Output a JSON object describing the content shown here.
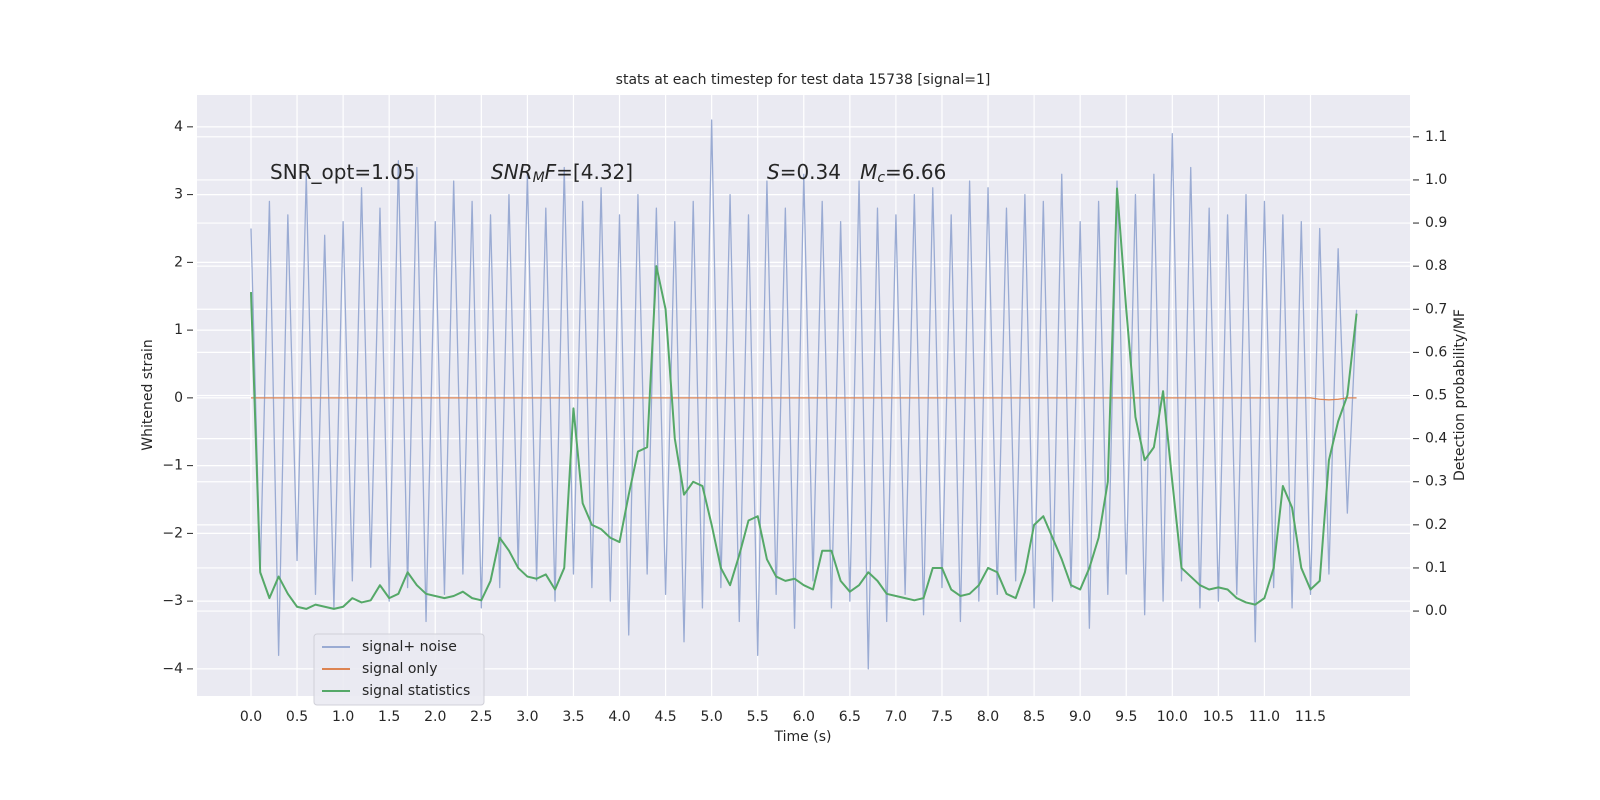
{
  "chart_data": {
    "type": "line",
    "title": "stats at each timestep for test data 15738 [signal=1]",
    "xlabel": "Time (s)",
    "ylabel": "Whitened strain",
    "y2label": "Detection probability/MF",
    "annotations": [
      [
        {
          "text": "SNR_opt=1.05",
          "style": "normal"
        }
      ],
      [
        {
          "text": "SNR",
          "style": "italic"
        },
        {
          "text": "M",
          "style": "sub"
        },
        {
          "text": "F",
          "style": "italic"
        },
        {
          "text": "=[4.32]",
          "style": "normal"
        }
      ],
      [
        {
          "text": "S",
          "style": "italic"
        },
        {
          "text": "=0.34   ",
          "style": "normal"
        },
        {
          "text": "M",
          "style": "italic"
        },
        {
          "text": "c",
          "style": "sub"
        },
        {
          "text": "=6.66",
          "style": "normal"
        }
      ]
    ],
    "grid": true,
    "legend": "lower left",
    "x": [
      0,
      0.1,
      0.2,
      0.3,
      0.4,
      0.5,
      0.6,
      0.7,
      0.8,
      0.9,
      1,
      1.1,
      1.2,
      1.3,
      1.4,
      1.5,
      1.6,
      1.7,
      1.8,
      1.9,
      2,
      2.1,
      2.2,
      2.3,
      2.4,
      2.5,
      2.6,
      2.7,
      2.8,
      2.9,
      3,
      3.1,
      3.2,
      3.3,
      3.4,
      3.5,
      3.6,
      3.7,
      3.8,
      3.9,
      4,
      4.1,
      4.2,
      4.3,
      4.4,
      4.5,
      4.6,
      4.7,
      4.8,
      4.9,
      5,
      5.1,
      5.2,
      5.3,
      5.4,
      5.5,
      5.6,
      5.7,
      5.8,
      5.9,
      6,
      6.1,
      6.2,
      6.3,
      6.4,
      6.5,
      6.6,
      6.7,
      6.8,
      6.9,
      7,
      7.1,
      7.2,
      7.3,
      7.4,
      7.5,
      7.6,
      7.7,
      7.8,
      7.9,
      8,
      8.1,
      8.2,
      8.3,
      8.4,
      8.5,
      8.6,
      8.7,
      8.8,
      8.9,
      9,
      9.1,
      9.2,
      9.3,
      9.4,
      9.5,
      9.6,
      9.7,
      9.8,
      9.9,
      10,
      10.1,
      10.2,
      10.3,
      10.4,
      10.5,
      10.6,
      10.7,
      10.8,
      10.9,
      11,
      11.1,
      11.2,
      11.3,
      11.4,
      11.5,
      11.6,
      11.7,
      11.8,
      11.9,
      12
    ],
    "series": [
      {
        "name": "signal+ noise",
        "color": "#9aabd3",
        "values": [
          2.5,
          -2.6,
          2.9,
          -3.8,
          2.7,
          -2.4,
          3.3,
          -2.9,
          2.4,
          -3.1,
          2.6,
          -2.7,
          3.1,
          -2.5,
          2.8,
          -3.0,
          3.5,
          -2.8,
          3.4,
          -3.3,
          2.6,
          -2.9,
          3.2,
          -2.6,
          2.9,
          -3.1,
          2.7,
          -2.8,
          3.0,
          -2.5,
          3.3,
          -2.7,
          2.8,
          -3.0,
          3.4,
          -2.6,
          2.9,
          -2.8,
          3.1,
          -3.0,
          2.7,
          -3.5,
          3.0,
          -2.6,
          2.8,
          -2.9,
          2.6,
          -3.6,
          2.9,
          -3.1,
          4.1,
          -2.8,
          3.0,
          -3.3,
          2.7,
          -3.8,
          3.2,
          -2.9,
          2.8,
          -3.4,
          3.3,
          -2.7,
          2.9,
          -3.1,
          2.6,
          -3.0,
          3.2,
          -4.0,
          2.8,
          -3.3,
          2.7,
          -2.9,
          3.0,
          -3.2,
          3.1,
          -2.8,
          2.7,
          -3.3,
          3.2,
          -3.0,
          3.1,
          -2.9,
          2.8,
          -2.7,
          3.0,
          -3.1,
          2.9,
          -3.0,
          3.3,
          -2.8,
          2.6,
          -3.4,
          2.9,
          -2.9,
          3.2,
          -2.6,
          3.0,
          -3.2,
          3.3,
          -3.0,
          3.9,
          -2.7,
          3.4,
          -3.1,
          2.8,
          -3.0,
          2.7,
          -2.9,
          3.0,
          -3.6,
          2.9,
          -2.8,
          2.7,
          -3.1,
          2.6,
          -2.9,
          2.5,
          -2.6,
          2.2,
          -1.7,
          1.3
        ]
      },
      {
        "name": "signal only",
        "color": "#dd8452",
        "values": [
          0,
          0,
          0,
          0,
          0,
          0,
          0,
          0,
          0,
          0,
          0,
          0,
          0,
          0,
          0,
          0,
          0,
          0,
          0,
          0,
          0,
          0,
          0,
          0,
          0,
          0,
          0,
          0,
          0,
          0,
          0,
          0,
          0,
          0,
          0,
          0,
          0,
          0,
          0,
          0,
          0,
          0,
          0,
          0,
          0,
          0,
          0,
          0,
          0,
          0,
          0,
          0,
          0,
          0,
          0,
          0,
          0,
          0,
          0,
          0,
          0,
          0,
          0,
          0,
          0,
          0,
          0,
          0,
          0,
          0,
          0,
          0,
          0,
          0,
          0,
          0,
          0,
          0,
          0,
          0,
          0,
          0,
          0,
          0,
          0,
          0,
          0,
          0,
          0,
          0,
          0,
          0,
          0,
          0,
          0,
          0,
          0,
          0,
          0,
          0,
          0,
          0,
          0,
          0,
          0,
          0,
          0,
          0,
          0,
          0,
          0,
          0,
          0,
          0,
          0,
          0,
          -0.02,
          -0.03,
          -0.02,
          0,
          0
        ]
      },
      {
        "name": "signal statistics",
        "color": "#55a868",
        "axis": "y2",
        "values": [
          0.74,
          0.09,
          0.03,
          0.08,
          0.04,
          0.01,
          0.005,
          0.015,
          0.01,
          0.005,
          0.01,
          0.03,
          0.02,
          0.025,
          0.06,
          0.03,
          0.04,
          0.09,
          0.06,
          0.04,
          0.035,
          0.03,
          0.035,
          0.045,
          0.03,
          0.025,
          0.07,
          0.17,
          0.14,
          0.1,
          0.08,
          0.075,
          0.085,
          0.05,
          0.1,
          0.47,
          0.25,
          0.2,
          0.19,
          0.17,
          0.16,
          0.27,
          0.37,
          0.38,
          0.8,
          0.7,
          0.4,
          0.27,
          0.3,
          0.29,
          0.2,
          0.1,
          0.06,
          0.13,
          0.21,
          0.22,
          0.12,
          0.08,
          0.07,
          0.075,
          0.06,
          0.05,
          0.14,
          0.14,
          0.07,
          0.045,
          0.06,
          0.09,
          0.07,
          0.04,
          0.035,
          0.03,
          0.025,
          0.03,
          0.1,
          0.1,
          0.05,
          0.035,
          0.04,
          0.06,
          0.1,
          0.09,
          0.04,
          0.03,
          0.09,
          0.2,
          0.22,
          0.17,
          0.12,
          0.06,
          0.05,
          0.1,
          0.17,
          0.3,
          0.98,
          0.7,
          0.45,
          0.35,
          0.38,
          0.51,
          0.3,
          0.1,
          0.08,
          0.06,
          0.05,
          0.055,
          0.05,
          0.03,
          0.02,
          0.015,
          0.03,
          0.1,
          0.29,
          0.24,
          0.1,
          0.05,
          0.07,
          0.35,
          0.44,
          0.5,
          0.69
        ]
      }
    ],
    "xlim": [
      -0.586,
      12.58
    ],
    "xticks": [
      {
        "value": 0,
        "label": "0.0"
      },
      {
        "value": 0.5,
        "label": "0.5"
      },
      {
        "value": 1,
        "label": "1.0"
      },
      {
        "value": 1.5,
        "label": "1.5"
      },
      {
        "value": 2,
        "label": "2.0"
      },
      {
        "value": 2.5,
        "label": "2.5"
      },
      {
        "value": 3,
        "label": "3.0"
      },
      {
        "value": 3.5,
        "label": "3.5"
      },
      {
        "value": 4,
        "label": "4.0"
      },
      {
        "value": 4.5,
        "label": "4.5"
      },
      {
        "value": 5,
        "label": "5.0"
      },
      {
        "value": 5.5,
        "label": "5.5"
      },
      {
        "value": 6,
        "label": "6.0"
      },
      {
        "value": 6.5,
        "label": "6.5"
      },
      {
        "value": 7,
        "label": "7.0"
      },
      {
        "value": 7.5,
        "label": "7.5"
      },
      {
        "value": 8,
        "label": "8.0"
      },
      {
        "value": 8.5,
        "label": "8.5"
      },
      {
        "value": 9,
        "label": "9.0"
      },
      {
        "value": 9.5,
        "label": "9.5"
      },
      {
        "value": 10,
        "label": "10.0"
      },
      {
        "value": 10.5,
        "label": "10.5"
      },
      {
        "value": 11,
        "label": "11.0"
      },
      {
        "value": 11.5,
        "label": "11.5"
      }
    ],
    "ylim": [
      -4.4,
      4.47
    ],
    "yticks": [
      {
        "value": -4,
        "label": "−4"
      },
      {
        "value": -3,
        "label": "−3"
      },
      {
        "value": -2,
        "label": "−2"
      },
      {
        "value": -1,
        "label": "−1"
      },
      0,
      1,
      2,
      3,
      4
    ],
    "y2lim": [
      -0.197,
      1.197
    ],
    "y2ticks": [
      {
        "value": 0,
        "label": "0.0"
      },
      {
        "value": 0.1,
        "label": "0.1"
      },
      {
        "value": 0.2,
        "label": "0.2"
      },
      {
        "value": 0.3,
        "label": "0.3"
      },
      {
        "value": 0.4,
        "label": "0.4"
      },
      {
        "value": 0.5,
        "label": "0.5"
      },
      {
        "value": 0.6,
        "label": "0.6"
      },
      {
        "value": 0.7,
        "label": "0.7"
      },
      {
        "value": 0.8,
        "label": "0.8"
      },
      {
        "value": 0.9,
        "label": "0.9"
      },
      {
        "value": 1,
        "label": "1.0"
      },
      {
        "value": 1.1,
        "label": "1.1"
      }
    ]
  }
}
